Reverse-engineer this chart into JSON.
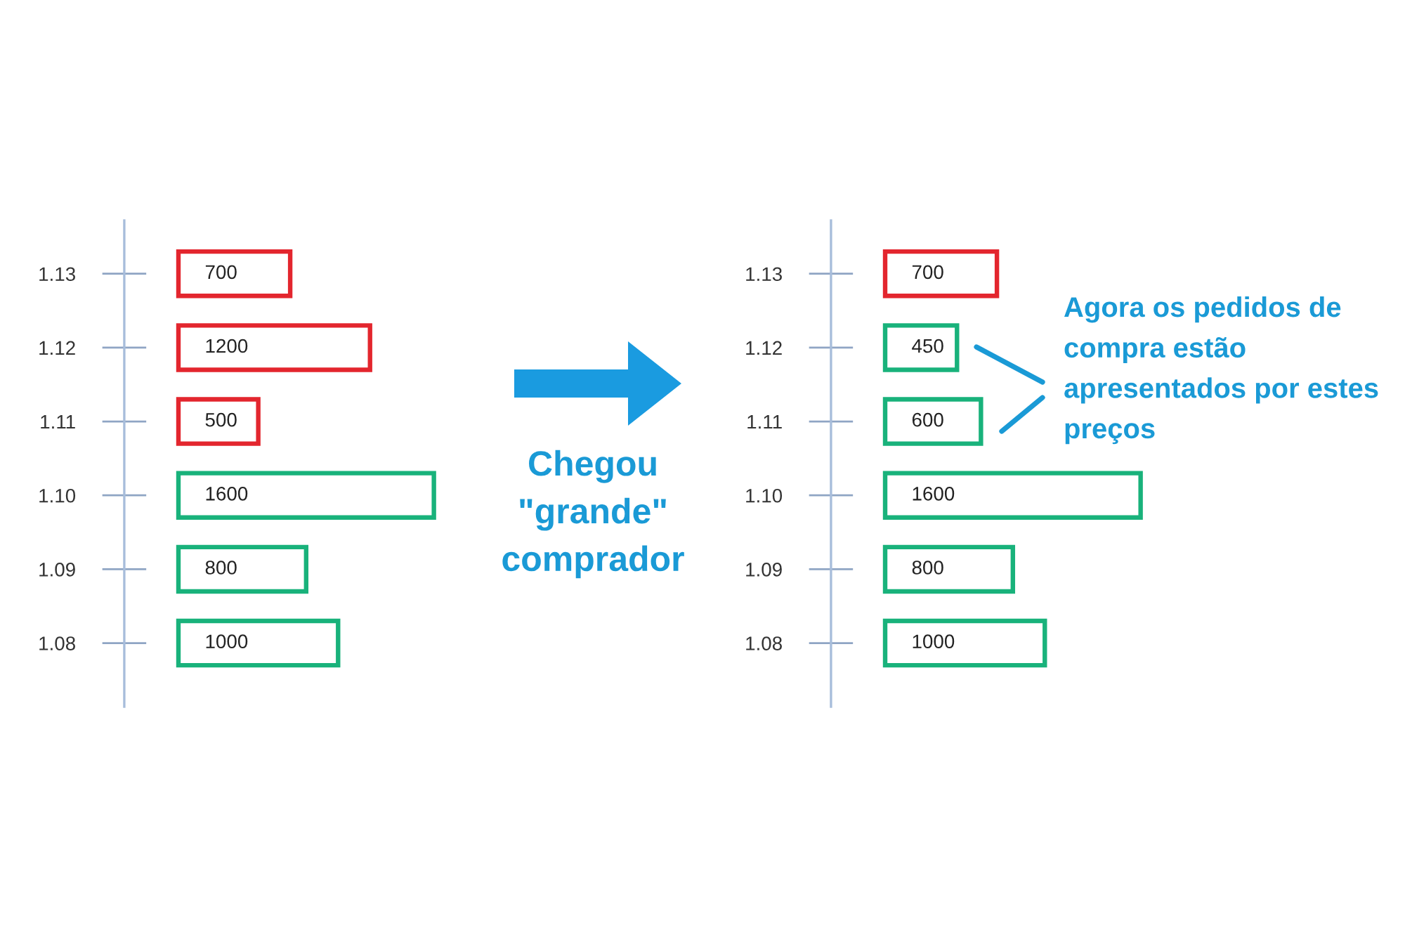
{
  "chart_data": [
    {
      "type": "bar",
      "orientation": "horizontal",
      "categories": [
        "1.13",
        "1.12",
        "1.11",
        "1.10",
        "1.09",
        "1.08"
      ],
      "values": [
        700,
        1200,
        500,
        1600,
        800,
        1000
      ],
      "colors": [
        "#e3262e",
        "#e3262e",
        "#e3262e",
        "#19b27b",
        "#19b27b",
        "#19b27b"
      ],
      "data_labels": true,
      "tick_labels": "y",
      "annotations": [
        "Chegou\n\"grande\"\ncomprador"
      ]
    },
    {
      "type": "bar",
      "orientation": "horizontal",
      "categories": [
        "1.13",
        "1.12",
        "1.11",
        "1.10",
        "1.09",
        "1.08"
      ],
      "values": [
        700,
        450,
        600,
        1600,
        800,
        1000
      ],
      "colors": [
        "#e3262e",
        "#19b27b",
        "#19b27b",
        "#19b27b",
        "#19b27b",
        "#19b27b"
      ],
      "data_labels": true,
      "tick_labels": "y",
      "annotations": [
        "Agora os pedidos de\ncompra estão\napresentados por estes\npreços"
      ]
    }
  ]
}
